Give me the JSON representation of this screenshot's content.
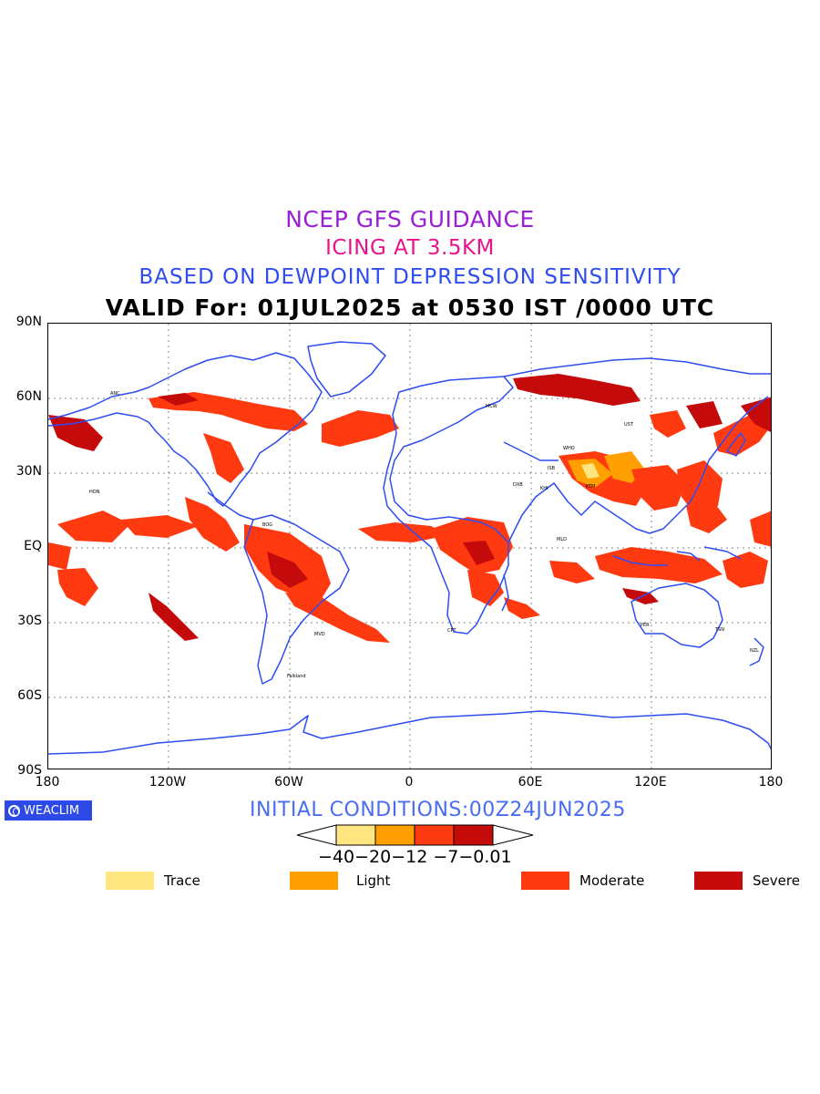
{
  "titles": {
    "line1": "NCEP GFS GUIDANCE",
    "line2": "ICING AT 3.5KM",
    "line3": "BASED ON DEWPOINT DEPRESSION SENSITIVITY",
    "line4": "VALID For: 01JUL2025 at 0530 IST /0000 UTC"
  },
  "map": {
    "projection": "equirectangular",
    "lat_range": [
      -90,
      90
    ],
    "lon_range": [
      -180,
      180
    ],
    "lat_labels": [
      "90N",
      "60N",
      "30N",
      "EQ",
      "30S",
      "60S",
      "90S"
    ],
    "lon_labels": [
      "180",
      "120W",
      "60W",
      "0",
      "60E",
      "120E",
      "180"
    ],
    "grid": "dotted",
    "coastline_color": "#2e4cf0"
  },
  "logo": {
    "text": "WEACLIM",
    "color": "#2d4ae6"
  },
  "initial_conditions": "INITIAL CONDITIONS:00Z24JUN2025",
  "colorbar": {
    "ticks": [
      "−40",
      "−20",
      "−12",
      "−7",
      "−0.01"
    ],
    "tick_text": "−40−20−12 −7−0.01",
    "colors": [
      "#ffe680",
      "#ffa000",
      "#ff3a10",
      "#c40a0a"
    ]
  },
  "legend": [
    {
      "label": "Trace",
      "color": "#ffe680"
    },
    {
      "label": "Light",
      "color": "#ffa000"
    },
    {
      "label": "Moderate",
      "color": "#ff3a10"
    },
    {
      "label": "Severe",
      "color": "#c40a0a"
    }
  ],
  "station_labels": [
    "ANC",
    "MCW",
    "WHO",
    "UST",
    "HON",
    "ISB",
    "KTM",
    "MLD",
    "DXB",
    "KHI",
    "CPT",
    "BOG",
    "MVD",
    "Falkland",
    "NZL",
    "TSN",
    "PER"
  ]
}
